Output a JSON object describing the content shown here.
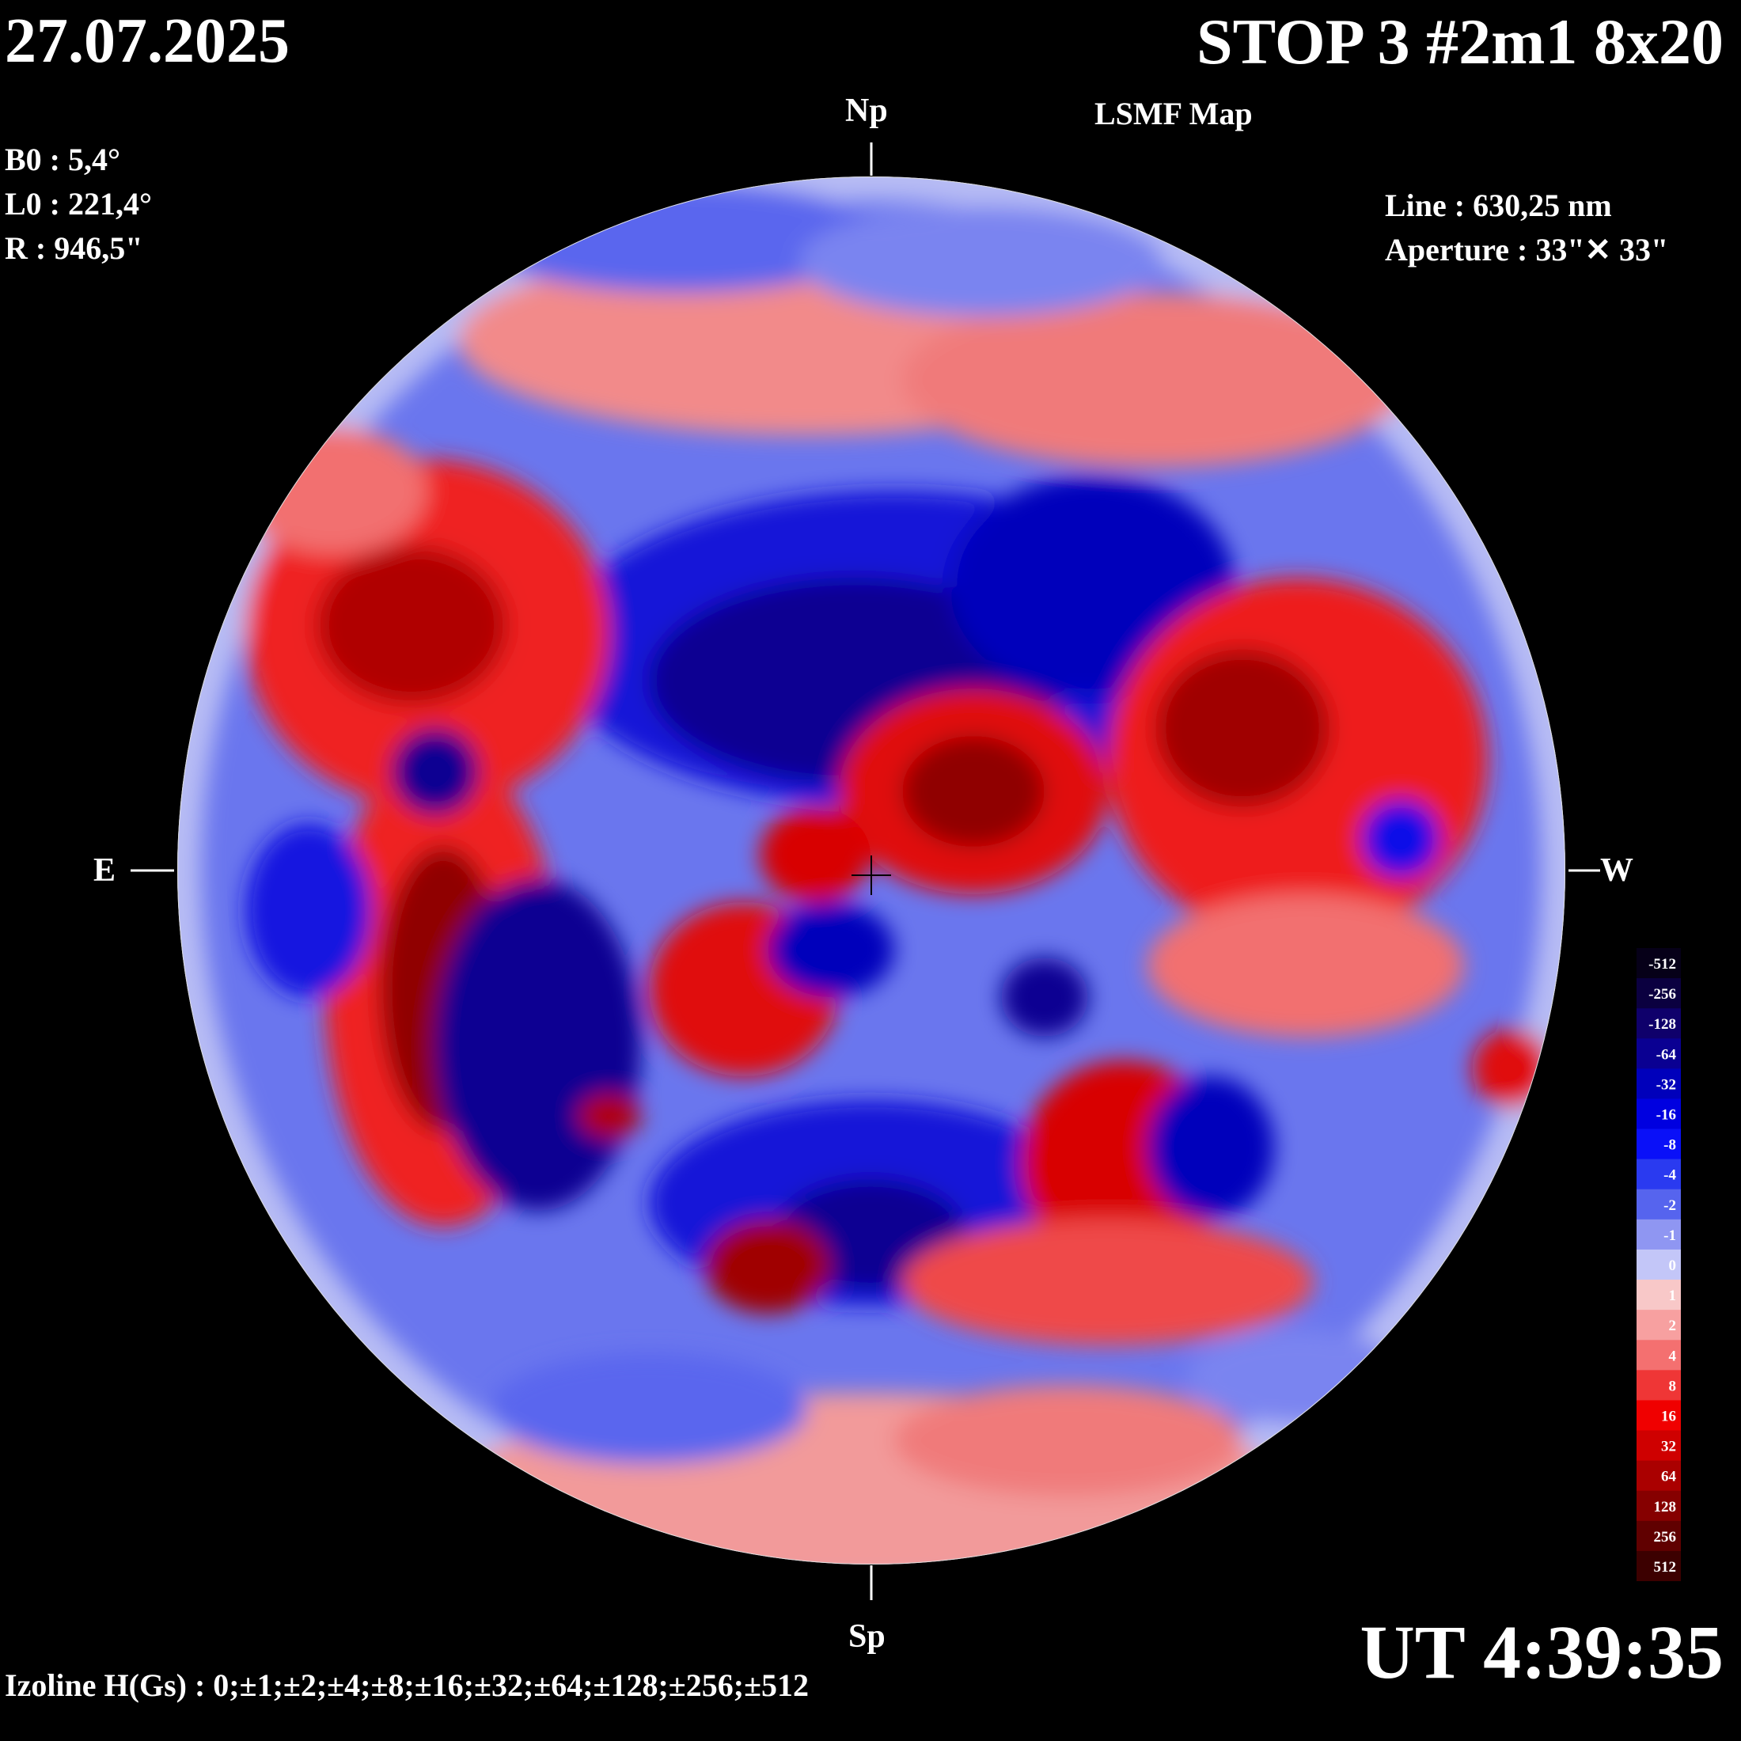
{
  "header": {
    "date": "27.07.2025",
    "title": "STOP 3 #2m1 8x20",
    "subtitle": "LSMF  Map"
  },
  "params": {
    "b0": "B0 : 5,4°",
    "l0": "L0 : 221,4°",
    "r": "R  : 946,5\""
  },
  "instrument": {
    "line": "Line :  630,25 nm",
    "aperture": "Aperture : 33\"✕ 33\""
  },
  "compass": {
    "north": "Np",
    "south": "Sp",
    "east": "E",
    "west": "W"
  },
  "time": "UT 4:39:35",
  "izoline": "Izoline H(Gs) : 0;±1;±2;±4;±8;±16;±32;±64;±128;±256;±512",
  "colorbar": {
    "levels": [
      "-512",
      "-256",
      "-128",
      "-64",
      "-32",
      "-16",
      "-8",
      "-4",
      "-2",
      "-1",
      "0",
      "1",
      "2",
      "4",
      "8",
      "16",
      "32",
      "64",
      "128",
      "256",
      "512"
    ],
    "colors": [
      "#060018",
      "#0b0040",
      "#0f006b",
      "#0a0092",
      "#0000bb",
      "#0000e0",
      "#0a10f8",
      "#2a3af0",
      "#5664ee",
      "#8f96f2",
      "#c3c6f8",
      "#f8c8c8",
      "#f7a0a0",
      "#f47070",
      "#ef3636",
      "#f00000",
      "#cf0000",
      "#aa0000",
      "#860000",
      "#600000",
      "#3c0000"
    ]
  },
  "colors": {
    "positive_strong": "#a00000",
    "positive_weak": "#f4b4b4",
    "negative_strong": "#0a0092",
    "negative_weak": "#b8bcf4",
    "background": "#000000",
    "text": "#ffffff"
  }
}
